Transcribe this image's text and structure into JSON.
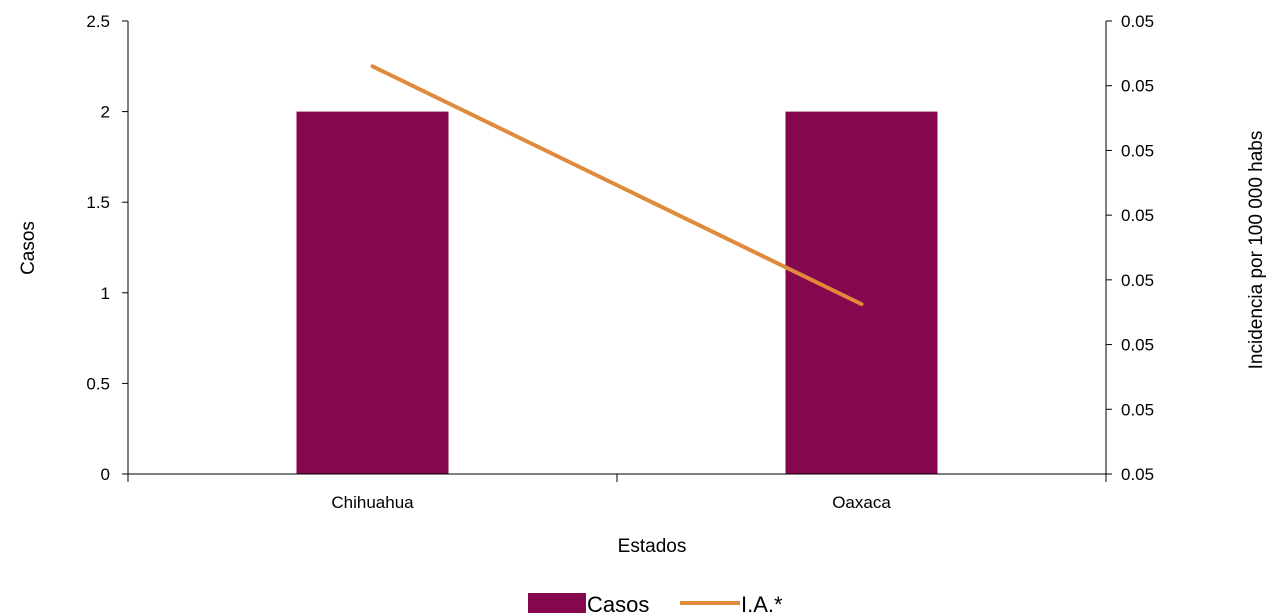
{
  "chart_data": {
    "type": "bar",
    "categories": [
      "Chihuahua",
      "Oaxaca"
    ],
    "xlabel": "Estados",
    "ylabel": "Casos",
    "y2label": "Incidencia por 100 000 habs",
    "ylim": [
      0,
      2.5
    ],
    "yticks": [
      0,
      0.5,
      1,
      1.5,
      2,
      2.5
    ],
    "y2_tick_labels": [
      "0.05",
      "0.05",
      "0.05",
      "0.05",
      "0.05",
      "0.05",
      "0.05",
      "0.05"
    ],
    "y2_tick_positions": [
      0,
      0.1429,
      0.2857,
      0.4286,
      0.5714,
      0.7143,
      0.8571,
      1
    ],
    "series": [
      {
        "name": "Casos",
        "type": "bar",
        "axis": "left",
        "values": [
          2,
          2
        ],
        "color": "#85074d"
      },
      {
        "name": "I.A.*",
        "type": "line",
        "axis": "right",
        "values_normalized": [
          0.9,
          0.375
        ],
        "color": "#e08a3c"
      }
    ],
    "legend": {
      "position": "bottom-center",
      "entries": [
        "Casos",
        "I.A.*"
      ]
    },
    "grid": false
  }
}
